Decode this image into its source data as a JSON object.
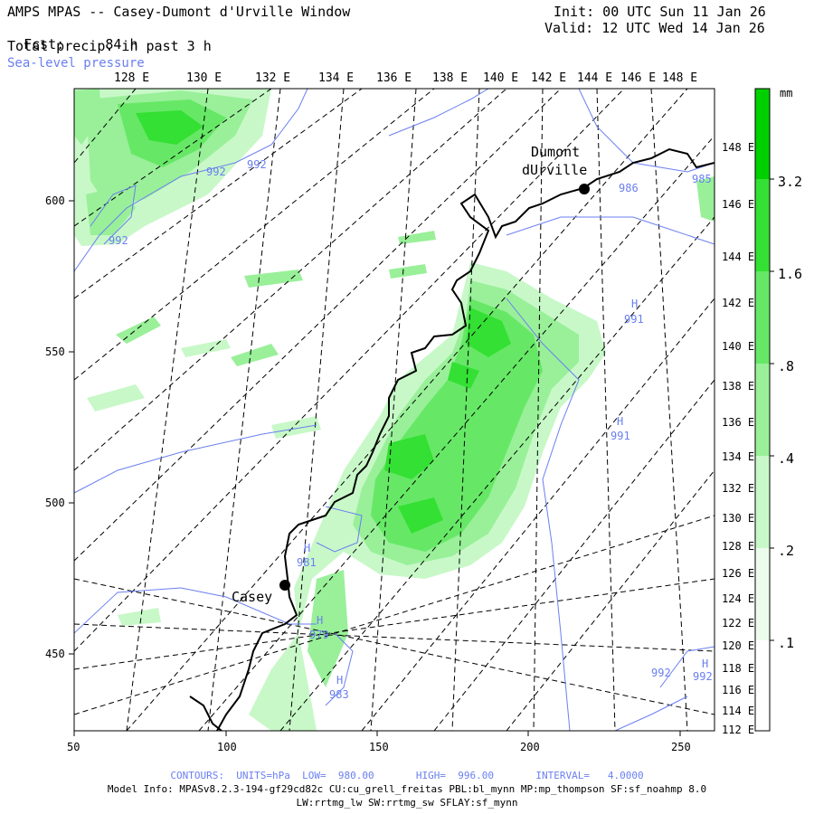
{
  "header": {
    "title": "AMPS MPAS -- Casey-Dumont d'Urville Window",
    "fcst_label": "Fcst:",
    "fcst_value": "84 h",
    "field": "Total precip. in past 3 h",
    "overlay": "Sea-level pressure",
    "init": "Init: 00 UTC Sun 11 Jan 26",
    "valid": "Valid: 12 UTC Wed 14 Jan 26"
  },
  "map": {
    "top_lon_labels": [
      "128 E",
      "130 E",
      "132 E",
      "134 E",
      "136 E",
      "138 E",
      "140 E",
      "142 E",
      "144 E",
      "146 E",
      "148 E"
    ],
    "right_lon_labels": [
      "148 E",
      "146 E",
      "144 E",
      "142 E",
      "140 E",
      "138 E",
      "136 E",
      "134 E",
      "132 E",
      "130 E",
      "128 E",
      "126 E",
      "124 E",
      "122 E",
      "120 E",
      "118 E",
      "116 E",
      "114 E",
      "112 E"
    ],
    "x_ticks": [
      "50",
      "100",
      "150",
      "200",
      "250"
    ],
    "y_ticks": [
      "600",
      "550",
      "500",
      "450"
    ],
    "stations": [
      {
        "name": "Dumont",
        "name2": "dUrville"
      },
      {
        "name": "Casey"
      }
    ],
    "pressure_labels": [
      "992",
      "992",
      "992",
      "986",
      "985",
      "991",
      "991",
      "981",
      "979",
      "983",
      "992",
      "992"
    ],
    "high_markers": [
      "H",
      "H",
      "H",
      "H",
      "H",
      "H"
    ]
  },
  "colorbar": {
    "unit": "mm",
    "levels": [
      "3.2",
      "1.6",
      ".8",
      ".4",
      ".2",
      ".1"
    ],
    "colors": [
      "#00d000",
      "#33e033",
      "#66e866",
      "#99f099",
      "#c8f8c8",
      "#ecfcec",
      "#ffffff"
    ]
  },
  "footer": {
    "contours": "CONTOURS:  UNITS=hPa  LOW=  980.00       HIGH=  996.00       INTERVAL=   4.0000",
    "model_info": "Model Info: MPASv8.2.3-194-gf29cd82c CU:cu_grell_freitas PBL:bl_mynn MP:mp_thompson SF:sf_noahmp 8.0",
    "model_info2": "LW:rrtmg_lw SW:rrtmg_sw SFLAY:sf_mynn"
  }
}
